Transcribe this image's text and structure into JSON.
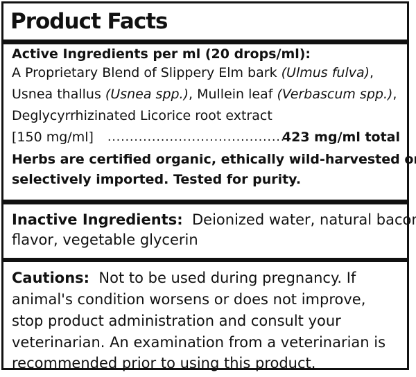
{
  "title": "Product Facts",
  "active": {
    "heading": "Active Ingredients per ml (20 drops/ml):",
    "line1_a": "A Proprietary Blend of Slippery Elm bark ",
    "line1_i": "(Ulmus fulva)",
    "line1_b": ",",
    "line2_a": "Usnea thallus ",
    "line2_i1": "(Usnea spp.)",
    "line2_b": ", Mullein leaf ",
    "line2_i2": "(Verbascum spp.)",
    "line2_c": ",",
    "line3": "Deglycyrrhizinated Licorice root extract",
    "line4": "[150 mg/ml]",
    "dots": "............................................................",
    "total": "423 mg/ml total",
    "note_line1": "Herbs are certified organic, ethically wild-harvested or",
    "note_line2": "selectively imported. Tested for purity."
  },
  "inactive": {
    "heading": "Inactive Ingredients:",
    "text_line1": "Deionized water, natural bacon",
    "text_line2": "flavor, vegetable glycerin"
  },
  "cautions": {
    "heading": "Cautions:",
    "line1": "Not to be used during pregnancy. If",
    "line2": "animal's condition worsens or does not improve,",
    "line3": "stop product administration and consult your",
    "line4": "veterinarian. An examination from a veterinarian is",
    "line5": "recommended prior to using this product."
  }
}
